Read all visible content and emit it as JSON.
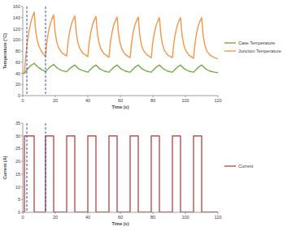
{
  "chart_data": [
    {
      "type": "line",
      "x_label": "Time (s)",
      "y_label": "Temperature (°C)",
      "x": [
        0,
        1,
        2,
        3,
        4,
        5,
        6,
        7,
        8,
        9,
        10,
        12,
        14,
        15,
        16,
        17,
        18,
        19,
        20,
        21,
        22,
        24,
        27,
        28,
        29,
        30,
        31,
        32,
        33,
        34,
        35,
        37,
        40,
        41,
        42,
        43,
        44,
        45,
        46,
        47,
        48,
        50,
        53,
        54,
        55,
        56,
        57,
        58,
        59,
        60,
        61,
        63,
        66,
        67,
        68,
        69,
        70,
        71,
        72,
        73,
        74,
        76,
        79,
        80,
        81,
        82,
        83,
        84,
        85,
        86,
        87,
        89,
        92,
        93,
        94,
        95,
        96,
        97,
        98,
        99,
        100,
        102,
        105,
        106,
        107,
        108,
        109,
        110,
        111,
        112,
        113,
        115,
        118,
        120
      ],
      "series": [
        {
          "name": "Case Temperature",
          "color": "#70ad47",
          "values": [
            40,
            40,
            44,
            48,
            51,
            54,
            56,
            58,
            55,
            52,
            50,
            46,
            43,
            46,
            49,
            52,
            54,
            56,
            53,
            50,
            48,
            45,
            43,
            46,
            49,
            51,
            53,
            55,
            52,
            49,
            47,
            45,
            42,
            45,
            48,
            51,
            53,
            55,
            52,
            49,
            47,
            44,
            42,
            45,
            48,
            51,
            53,
            55,
            52,
            49,
            47,
            44,
            42,
            45,
            48,
            51,
            53,
            55,
            52,
            49,
            47,
            44,
            42,
            45,
            48,
            51,
            53,
            55,
            52,
            49,
            47,
            44,
            42,
            45,
            48,
            51,
            53,
            55,
            52,
            49,
            47,
            44,
            42,
            45,
            48,
            51,
            53,
            55,
            52,
            49,
            47,
            44,
            42,
            41
          ]
        },
        {
          "name": "Junction Temperature",
          "color": "#f79646",
          "values": [
            40,
            42,
            75,
            100,
            118,
            132,
            142,
            150,
            115,
            98,
            88,
            77,
            70,
            100,
            118,
            130,
            138,
            145,
            111,
            95,
            86,
            77,
            71,
            100,
            117,
            129,
            137,
            143,
            110,
            94,
            85,
            76,
            70,
            99,
            116,
            128,
            136,
            142,
            109,
            93,
            84,
            75,
            69,
            98,
            115,
            127,
            135,
            141,
            108,
            92,
            83,
            74,
            68,
            97,
            115,
            127,
            135,
            141,
            107,
            91,
            82,
            74,
            68,
            97,
            114,
            126,
            134,
            140,
            107,
            91,
            82,
            73,
            68,
            97,
            114,
            126,
            134,
            140,
            107,
            91,
            82,
            73,
            67,
            96,
            114,
            126,
            134,
            140,
            106,
            90,
            81,
            73,
            68,
            66
          ]
        }
      ],
      "xlim": [
        0,
        120
      ],
      "xticks": [
        0,
        20,
        40,
        60,
        80,
        100,
        120
      ],
      "ylim": [
        0,
        160
      ],
      "yticks": [
        0,
        20,
        40,
        60,
        80,
        100,
        120,
        140,
        160
      ],
      "grid": false,
      "legend": "right",
      "vlines": [
        2.5,
        14
      ]
    },
    {
      "type": "line",
      "x_label": "Time (s)",
      "y_label": "Current (A)",
      "x": [
        0,
        1,
        1,
        7,
        7,
        14,
        14,
        19,
        19,
        27,
        27,
        32,
        32,
        40,
        40,
        45,
        45,
        53,
        53,
        58,
        58,
        66,
        66,
        71,
        71,
        79,
        79,
        84,
        84,
        92,
        92,
        97,
        97,
        105,
        105,
        110,
        110,
        120
      ],
      "series": [
        {
          "name": "Current",
          "color": "#c0504d",
          "values": [
            0,
            0,
            30,
            30,
            0,
            0,
            30,
            30,
            0,
            0,
            30,
            30,
            0,
            0,
            30,
            30,
            0,
            0,
            30,
            30,
            0,
            0,
            30,
            30,
            0,
            0,
            30,
            30,
            0,
            0,
            30,
            30,
            0,
            0,
            30,
            30,
            0,
            0
          ]
        }
      ],
      "xlim": [
        0,
        120
      ],
      "xticks": [
        0,
        20,
        40,
        60,
        80,
        100,
        120
      ],
      "ylim": [
        0,
        35
      ],
      "yticks": [
        0,
        5,
        10,
        15,
        20,
        25,
        30,
        35
      ],
      "grid": false,
      "legend": "right",
      "vlines": [
        2.5,
        14
      ]
    }
  ]
}
